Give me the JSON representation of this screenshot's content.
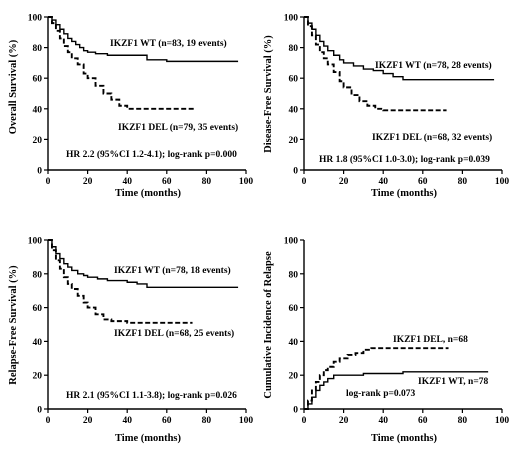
{
  "chart_data": [
    {
      "type": "line",
      "title": "",
      "xlabel": "Time (months)",
      "ylabel": "Overall Survival (%)",
      "xlim": [
        0,
        100
      ],
      "ylim": [
        0,
        100
      ],
      "x_ticks": [
        0,
        20,
        40,
        60,
        80,
        100
      ],
      "y_ticks": [
        0,
        20,
        40,
        60,
        80,
        100
      ],
      "series": [
        {
          "name": "IKZF1 WT (n=83, 19 events)",
          "style": "solid",
          "x": [
            0,
            2,
            4,
            6,
            8,
            10,
            12,
            14,
            16,
            18,
            20,
            24,
            30,
            40,
            50,
            60,
            70,
            80,
            90,
            96
          ],
          "y": [
            100,
            98,
            95,
            92,
            89,
            86,
            84,
            82,
            80,
            78,
            77,
            76,
            75,
            75,
            72,
            71,
            71,
            71,
            71,
            71
          ]
        },
        {
          "name": "IKZF1 DEL (n=79, 35 events)",
          "style": "dashed",
          "x": [
            0,
            2,
            4,
            6,
            8,
            10,
            12,
            15,
            18,
            20,
            24,
            28,
            32,
            36,
            40,
            50,
            60,
            70,
            74
          ],
          "y": [
            100,
            96,
            91,
            86,
            81,
            77,
            73,
            69,
            63,
            60,
            55,
            50,
            46,
            42,
            40,
            40,
            40,
            40,
            40
          ]
        }
      ],
      "annotations": [
        "HR 2.2 (95%CI 1.2-4.1); log-rank p=0.000"
      ]
    },
    {
      "type": "line",
      "title": "",
      "xlabel": "Time (months)",
      "ylabel": "Disease-Free Survival (%)",
      "xlim": [
        0,
        100
      ],
      "ylim": [
        0,
        100
      ],
      "x_ticks": [
        0,
        20,
        40,
        60,
        80,
        100
      ],
      "y_ticks": [
        0,
        20,
        40,
        60,
        80,
        100
      ],
      "series": [
        {
          "name": "IKZF1 WT (n=78, 28 events)",
          "style": "solid",
          "x": [
            0,
            2,
            4,
            6,
            8,
            10,
            12,
            15,
            18,
            20,
            25,
            30,
            35,
            40,
            45,
            50,
            60,
            70,
            80,
            96
          ],
          "y": [
            100,
            96,
            92,
            88,
            84,
            81,
            78,
            75,
            72,
            70,
            68,
            66,
            65,
            63,
            61,
            59,
            59,
            59,
            59,
            59
          ]
        },
        {
          "name": "IKZF1 DEL (n=68, 32 events)",
          "style": "dashed",
          "x": [
            0,
            2,
            4,
            6,
            8,
            10,
            12,
            15,
            18,
            20,
            24,
            28,
            32,
            36,
            40,
            50,
            60,
            72
          ],
          "y": [
            100,
            94,
            88,
            82,
            77,
            73,
            69,
            64,
            58,
            54,
            49,
            45,
            42,
            40,
            39,
            39,
            39,
            39
          ]
        }
      ],
      "annotations": [
        "HR 1.8 (95%CI 1.0-3.0); log-rank p=0.039"
      ]
    },
    {
      "type": "line",
      "title": "",
      "xlabel": "Time (months)",
      "ylabel": "Relapse-Free Survival (%)",
      "xlim": [
        0,
        100
      ],
      "ylim": [
        0,
        100
      ],
      "x_ticks": [
        0,
        20,
        40,
        60,
        80,
        100
      ],
      "y_ticks": [
        0,
        20,
        40,
        60,
        80,
        100
      ],
      "series": [
        {
          "name": "IKZF1 WT (n=78, 18 events)",
          "style": "solid",
          "x": [
            0,
            2,
            4,
            6,
            8,
            10,
            12,
            15,
            18,
            20,
            25,
            30,
            35,
            40,
            45,
            50,
            60,
            70,
            80,
            96
          ],
          "y": [
            100,
            96,
            92,
            89,
            86,
            84,
            82,
            80,
            79,
            78,
            77,
            76,
            76,
            75,
            74,
            72,
            72,
            72,
            72,
            72
          ]
        },
        {
          "name": "IKZF1 DEL (n=68, 25 events)",
          "style": "dashed",
          "x": [
            0,
            2,
            4,
            6,
            8,
            10,
            12,
            15,
            18,
            20,
            24,
            28,
            32,
            40,
            50,
            60,
            73
          ],
          "y": [
            100,
            94,
            88,
            83,
            78,
            74,
            71,
            67,
            63,
            60,
            56,
            53,
            52,
            51,
            51,
            51,
            51
          ]
        }
      ],
      "annotations": [
        "HR 2.1 (95%CI 1.1-3.8); log-rank p=0.026"
      ]
    },
    {
      "type": "line",
      "title": "",
      "xlabel": "Time (months)",
      "ylabel": "Cumulative Incidence of Relapse",
      "xlim": [
        0,
        100
      ],
      "ylim": [
        0,
        100
      ],
      "x_ticks": [
        0,
        20,
        40,
        60,
        80,
        100
      ],
      "y_ticks": [
        0,
        20,
        40,
        60,
        80,
        100
      ],
      "series": [
        {
          "name": "IKZF1 DEL, n=68",
          "style": "dashed",
          "x": [
            0,
            2,
            4,
            6,
            8,
            10,
            12,
            15,
            18,
            22,
            26,
            30,
            34,
            38,
            45,
            55,
            65,
            73
          ],
          "y": [
            0,
            5,
            11,
            16,
            20,
            23,
            25,
            28,
            30,
            32,
            33,
            35,
            36,
            36,
            36,
            36,
            36,
            36
          ]
        },
        {
          "name": "IKZF1 WT, n=78",
          "style": "solid",
          "x": [
            0,
            2,
            4,
            6,
            8,
            10,
            12,
            15,
            18,
            22,
            26,
            30,
            35,
            40,
            45,
            50,
            60,
            70,
            80,
            93
          ],
          "y": [
            0,
            3,
            7,
            11,
            14,
            16,
            18,
            20,
            20,
            20,
            20,
            21,
            21,
            21,
            21,
            22,
            22,
            22,
            22,
            22
          ]
        }
      ],
      "annotations": [
        "log-rank p=0.073"
      ]
    }
  ]
}
